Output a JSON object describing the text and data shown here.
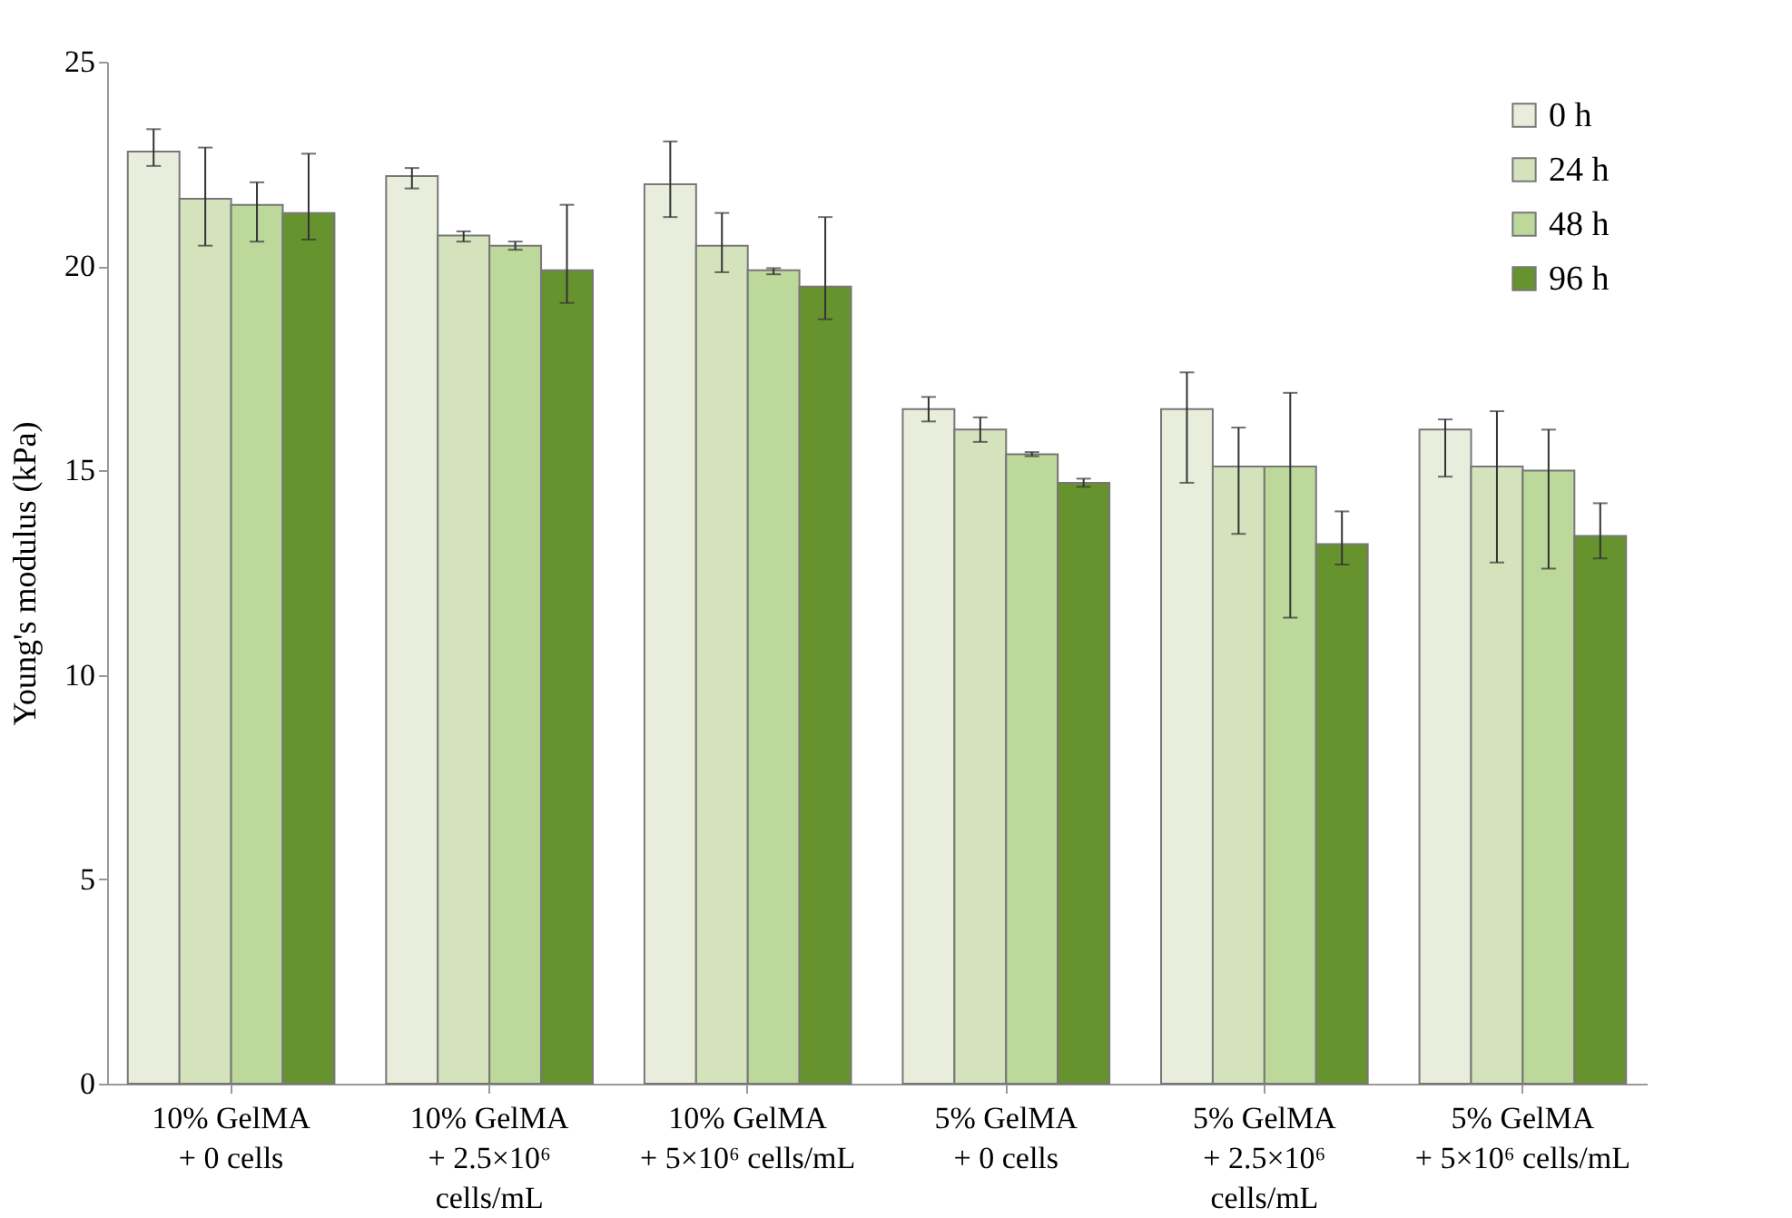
{
  "chart_data": {
    "type": "bar",
    "ylabel": "Young's modulus (kPa)",
    "categories": [
      "10% GelMA + 0 cells",
      "10% GelMA + 2.5×10⁶ cells/mL",
      "10% GelMA + 5×10⁶ cells/mL",
      "5% GelMA + 0 cells",
      "5% GelMA + 2.5×10⁶ cells/mL",
      "5% GelMA + 5×10⁶ cells/mL"
    ],
    "series": [
      {
        "name": "0 h",
        "color": "#e9eedc",
        "values": [
          22.8,
          22.2,
          22.0,
          16.5,
          16.5,
          16.0
        ],
        "errors": [
          [
            22.45,
            23.35
          ],
          [
            21.9,
            22.4
          ],
          [
            21.2,
            23.05
          ],
          [
            16.2,
            16.8
          ],
          [
            14.7,
            17.4
          ],
          [
            14.85,
            16.25
          ]
        ]
      },
      {
        "name": "24 h",
        "color": "#d4e3bc",
        "values": [
          21.65,
          20.75,
          20.5,
          16.0,
          15.1,
          15.1
        ],
        "errors": [
          [
            20.5,
            22.9
          ],
          [
            20.6,
            20.85
          ],
          [
            19.85,
            21.3
          ],
          [
            15.7,
            16.3
          ],
          [
            13.45,
            16.05
          ],
          [
            12.75,
            16.45
          ]
        ]
      },
      {
        "name": "48 h",
        "color": "#bcd89a",
        "values": [
          21.5,
          20.5,
          19.9,
          15.4,
          15.1,
          15.0
        ],
        "errors": [
          [
            20.6,
            22.05
          ],
          [
            20.4,
            20.6
          ],
          [
            19.8,
            19.95
          ],
          [
            15.35,
            15.45
          ],
          [
            11.4,
            16.9
          ],
          [
            12.6,
            16.0
          ]
        ]
      },
      {
        "name": "96 h",
        "color": "#67932f",
        "values": [
          21.3,
          19.9,
          19.5,
          14.7,
          13.2,
          13.4
        ],
        "errors": [
          [
            20.65,
            22.75
          ],
          [
            19.1,
            21.5
          ],
          [
            18.7,
            21.2
          ],
          [
            14.6,
            14.8
          ],
          [
            12.7,
            14.0
          ],
          [
            12.85,
            14.2
          ]
        ]
      }
    ],
    "ylim": [
      0,
      25
    ],
    "yticks": [
      0,
      5,
      10,
      15,
      20,
      25
    ],
    "legend": "top right"
  }
}
